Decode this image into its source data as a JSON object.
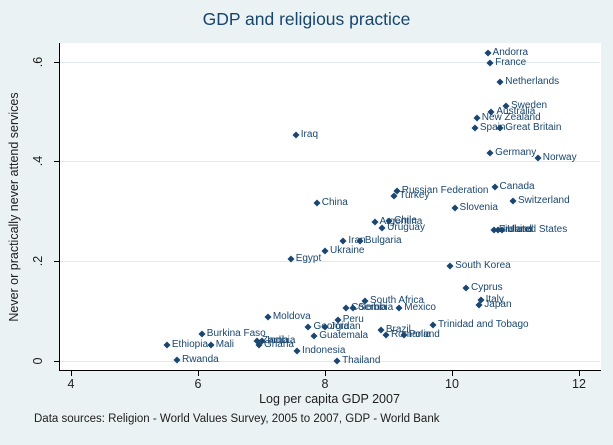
{
  "title": "GDP and religious practice",
  "caption": "Data sources: Religion - World Values Survey, 2005 to 2007, GDP - World Bank",
  "x_axis": {
    "label": "Log per capita GDP 2007",
    "ticks": [
      4,
      6,
      8,
      10,
      12
    ]
  },
  "y_axis": {
    "label": "Never or practically never attend services",
    "ticks": [
      "0",
      ".2",
      ".4",
      ".6"
    ],
    "tick_values": [
      0,
      0.2,
      0.4,
      0.6
    ]
  },
  "colors": {
    "background": "#eaf2f3",
    "plot_background": "#ffffff",
    "marker": "#1a476f",
    "title_text": "#17456e",
    "axis_text": "#202020",
    "gridline": "#dfeaf1"
  },
  "chart_data": {
    "type": "scatter",
    "title": "GDP and religious practice",
    "xlabel": "Log per capita GDP 2007",
    "ylabel": "Never or practically never attend services",
    "xlim": [
      3.81,
      12.33
    ],
    "ylim": [
      -0.02,
      0.637
    ],
    "grid": "horizontal",
    "marker_shape": "diamond",
    "label_position": "right",
    "points": [
      {
        "label": "Andorra",
        "x": 10.56,
        "y": 0.617
      },
      {
        "label": "France",
        "x": 10.6,
        "y": 0.597
      },
      {
        "label": "Netherlands",
        "x": 10.76,
        "y": 0.558
      },
      {
        "label": "Sweden",
        "x": 10.85,
        "y": 0.511
      },
      {
        "label": "Australia",
        "x": 10.62,
        "y": 0.499
      },
      {
        "label": "New Zealand",
        "x": 10.39,
        "y": 0.486
      },
      {
        "label": "Spain",
        "x": 10.36,
        "y": 0.467
      },
      {
        "label": "Great Britain",
        "x": 10.76,
        "y": 0.467
      },
      {
        "label": "Germany",
        "x": 10.6,
        "y": 0.417
      },
      {
        "label": "Norway",
        "x": 11.35,
        "y": 0.407
      },
      {
        "label": "Canada",
        "x": 10.67,
        "y": 0.348
      },
      {
        "label": "Switzerland",
        "x": 10.96,
        "y": 0.32
      },
      {
        "label": "Slovenia",
        "x": 10.04,
        "y": 0.307
      },
      {
        "label": "Finland",
        "x": 10.66,
        "y": 0.262
      },
      {
        "label": "Ireland",
        "x": 10.72,
        "y": 0.262
      },
      {
        "label": "United States",
        "x": 10.79,
        "y": 0.262
      },
      {
        "label": "Russian Federation",
        "x": 9.13,
        "y": 0.34
      },
      {
        "label": "Turkey",
        "x": 9.09,
        "y": 0.33
      },
      {
        "label": "China",
        "x": 7.87,
        "y": 0.317
      },
      {
        "label": "Iraq",
        "x": 7.54,
        "y": 0.452
      },
      {
        "label": "Argentina",
        "x": 8.78,
        "y": 0.277
      },
      {
        "label": "Chile",
        "x": 9.01,
        "y": 0.279
      },
      {
        "label": "Uruguay",
        "x": 8.9,
        "y": 0.265
      },
      {
        "label": "Iran",
        "x": 8.29,
        "y": 0.24
      },
      {
        "label": "Bulgaria",
        "x": 8.55,
        "y": 0.24
      },
      {
        "label": "Ukraine",
        "x": 8.0,
        "y": 0.22
      },
      {
        "label": "Egypt",
        "x": 7.46,
        "y": 0.204
      },
      {
        "label": "South Korea",
        "x": 9.97,
        "y": 0.19
      },
      {
        "label": "Cyprus",
        "x": 10.22,
        "y": 0.146
      },
      {
        "label": "Italy",
        "x": 10.45,
        "y": 0.122
      },
      {
        "label": "Japan",
        "x": 10.43,
        "y": 0.111
      },
      {
        "label": "South Africa",
        "x": 8.63,
        "y": 0.119
      },
      {
        "label": "Colombia",
        "x": 8.33,
        "y": 0.105
      },
      {
        "label": "Serbia",
        "x": 8.44,
        "y": 0.105
      },
      {
        "label": "Mexico",
        "x": 9.17,
        "y": 0.105
      },
      {
        "label": "Trinidad and Tobago",
        "x": 9.7,
        "y": 0.071
      },
      {
        "label": "Moldova",
        "x": 7.1,
        "y": 0.088
      },
      {
        "label": "Peru",
        "x": 8.2,
        "y": 0.081
      },
      {
        "label": "Georgia",
        "x": 7.74,
        "y": 0.068
      },
      {
        "label": "Jordan",
        "x": 8.0,
        "y": 0.067
      },
      {
        "label": "Guatemala",
        "x": 7.83,
        "y": 0.05
      },
      {
        "label": "Brazil",
        "x": 8.88,
        "y": 0.062
      },
      {
        "label": "Romania",
        "x": 8.96,
        "y": 0.052
      },
      {
        "label": "Poland",
        "x": 9.24,
        "y": 0.052
      },
      {
        "label": "Burkina Faso",
        "x": 6.06,
        "y": 0.053
      },
      {
        "label": "Ethiopia",
        "x": 5.51,
        "y": 0.031
      },
      {
        "label": "Mali",
        "x": 6.2,
        "y": 0.031
      },
      {
        "label": "Zambia",
        "x": 6.93,
        "y": 0.039
      },
      {
        "label": "India",
        "x": 7.01,
        "y": 0.039
      },
      {
        "label": "Ghana",
        "x": 6.96,
        "y": 0.031
      },
      {
        "label": "Indonesia",
        "x": 7.56,
        "y": 0.019
      },
      {
        "label": "Rwanda",
        "x": 5.67,
        "y": 0.001
      },
      {
        "label": "Thailand",
        "x": 8.19,
        "y": 0.0
      }
    ]
  }
}
